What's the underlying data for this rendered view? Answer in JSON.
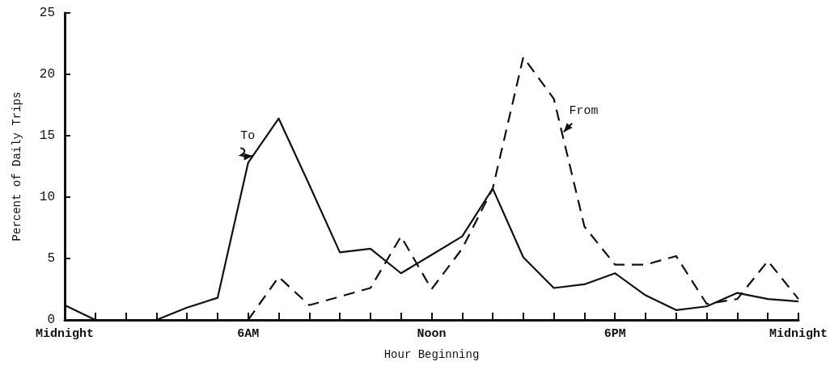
{
  "chart_data": {
    "type": "line",
    "xlabel": "Hour Beginning",
    "ylabel": "Percent of Daily Trips",
    "categories": [
      "Midnight",
      null,
      null,
      null,
      null,
      null,
      "6AM",
      null,
      null,
      null,
      null,
      null,
      "Noon",
      null,
      null,
      null,
      null,
      null,
      "6PM",
      null,
      null,
      null,
      null,
      null,
      "Midnight"
    ],
    "series": [
      {
        "name": "To",
        "color": "#111111",
        "line_style": "solid",
        "values": [
          1.2,
          0,
          0,
          0,
          1.0,
          1.8,
          12.8,
          16.4,
          11,
          5.5,
          5.8,
          3.8,
          5.3,
          6.8,
          10.7,
          5.1,
          2.6,
          2.9,
          3.8,
          2.0,
          0.8,
          1.1,
          2.2,
          1.7,
          1.5
        ]
      },
      {
        "name": "From",
        "color": "#111111",
        "line_style": "dashed",
        "values": [
          null,
          null,
          null,
          null,
          null,
          null,
          0,
          3.5,
          1.2,
          1.9,
          2.6,
          6.8,
          2.5,
          5.8,
          10.7,
          21.4,
          18.0,
          7.6,
          4.5,
          4.5,
          5.2,
          1.3,
          1.7,
          4.8,
          1.7
        ]
      }
    ],
    "ylim": [
      0,
      25
    ],
    "yticks": [
      0,
      5,
      10,
      15,
      20,
      25
    ],
    "grid": false,
    "legend": false,
    "marker": "none"
  }
}
